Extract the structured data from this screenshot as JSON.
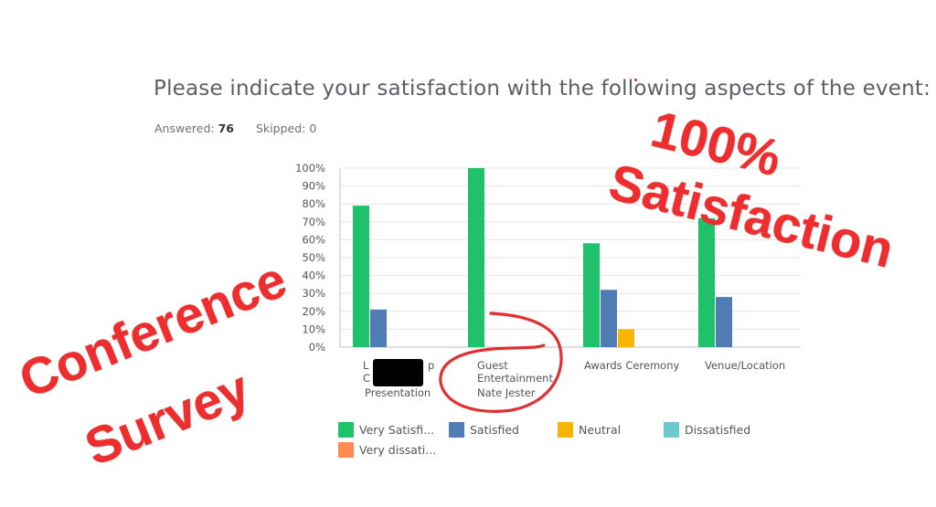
{
  "question": {
    "title": "Please indicate your satisfaction with the following aspects of the event:",
    "answered_label": "Answered:",
    "answered_value": "76",
    "skipped_label": "Skipped:",
    "skipped_value": "0"
  },
  "annotations": {
    "line1": "100%",
    "line2": "Satisfaction",
    "line3": "Conference",
    "line4": "Survey",
    "color": "#ee2e2e"
  },
  "chart_data": {
    "type": "bar",
    "categories": [
      [
        "L",
        "p",
        "C",
        "Presentation"
      ],
      [
        "Guest",
        "Entertainment",
        "Nate Jester"
      ],
      [
        "Awards Ceremony"
      ],
      [
        "Venue/Location"
      ]
    ],
    "series": [
      {
        "name": "Very Satisfi...",
        "color": "#1fc16b",
        "values": [
          79,
          100,
          58,
          72
        ]
      },
      {
        "name": "Satisfied",
        "color": "#507cb6",
        "values": [
          21,
          0,
          32,
          28
        ]
      },
      {
        "name": "Neutral",
        "color": "#f7b500",
        "values": [
          0,
          0,
          10,
          0
        ]
      },
      {
        "name": "Dissatisfied",
        "color": "#6bc8cd",
        "values": [
          0,
          0,
          0,
          0
        ]
      },
      {
        "name": "Very dissati...",
        "color": "#ff8b4f",
        "values": [
          0,
          0,
          0,
          0
        ]
      }
    ],
    "yticks": [
      "0%",
      "10%",
      "20%",
      "30%",
      "40%",
      "50%",
      "60%",
      "70%",
      "80%",
      "90%",
      "100%"
    ],
    "ylim": [
      0,
      100
    ],
    "grid": true,
    "legend": "bottom"
  }
}
